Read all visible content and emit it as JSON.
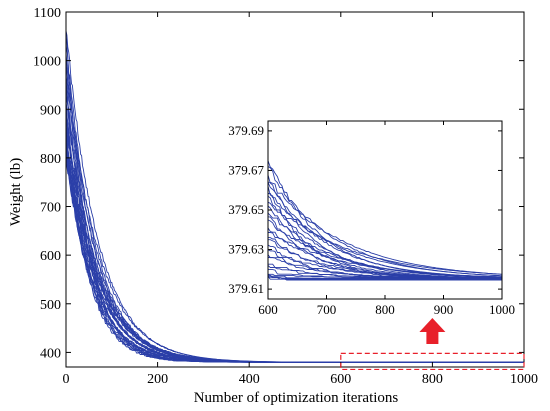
{
  "chart_data": {
    "type": "line",
    "xlabel": "Number of optimization iterations",
    "ylabel": "Weight (lb)",
    "xlim": [
      0,
      1000
    ],
    "ylim": [
      370,
      1100
    ],
    "x_ticks": [
      0,
      200,
      400,
      600,
      800,
      1000
    ],
    "y_ticks": [
      400,
      500,
      600,
      700,
      800,
      900,
      1000,
      1100
    ],
    "line_color": "#2b3fa8",
    "series_count": 30,
    "series_description": "30 optimization runs, each starting near 800-1080 lb and converging to about 379.62 lb",
    "start_weights": [
      1060,
      960,
      900,
      860,
      830,
      800,
      1040,
      980,
      920,
      880,
      850,
      820,
      1000,
      940,
      890,
      870,
      840,
      810,
      1070,
      990,
      910,
      860,
      830,
      805,
      1020,
      950,
      895,
      865,
      835,
      815
    ],
    "decay_iterations": [
      48,
      52,
      55,
      58,
      60,
      62,
      64,
      66,
      68,
      70,
      50,
      54,
      57,
      59,
      61,
      63,
      65,
      67,
      69,
      72,
      49,
      53,
      56,
      60,
      62,
      64,
      66,
      68,
      71,
      75
    ],
    "final_weight": 379.615,
    "highlight_region": {
      "x_range": [
        600,
        1000
      ],
      "y_range": [
        365,
        398
      ],
      "color": "#e8202a"
    },
    "arrow_color": "#e8202a",
    "inset": {
      "xlim": [
        600,
        1000
      ],
      "ylim": [
        379.605,
        379.695
      ],
      "x_ticks": [
        600,
        700,
        800,
        900,
        1000
      ],
      "y_ticks": [
        379.61,
        379.63,
        379.65,
        379.67,
        379.69
      ],
      "y_tick_labels": [
        "379.61",
        "379.63",
        "379.65",
        "379.67",
        "379.69"
      ],
      "start_values": [
        379.675,
        379.672,
        379.668,
        379.666,
        379.664,
        379.662,
        379.66,
        379.657,
        379.655,
        379.652,
        379.65,
        379.648,
        379.645,
        379.642,
        379.64,
        379.638,
        379.635,
        379.633,
        379.63,
        379.628,
        379.626,
        379.624,
        379.622,
        379.62,
        379.619,
        379.618,
        379.6175,
        379.617,
        379.6165,
        379.616
      ],
      "decay_iterations": [
        90,
        110,
        80,
        130,
        100,
        70,
        120,
        95,
        140,
        85,
        105,
        75,
        115,
        90,
        125,
        80,
        100,
        70,
        110,
        85,
        95,
        75,
        90,
        80,
        100,
        70,
        85,
        75,
        90,
        80
      ],
      "final_value": 379.6152
    }
  }
}
